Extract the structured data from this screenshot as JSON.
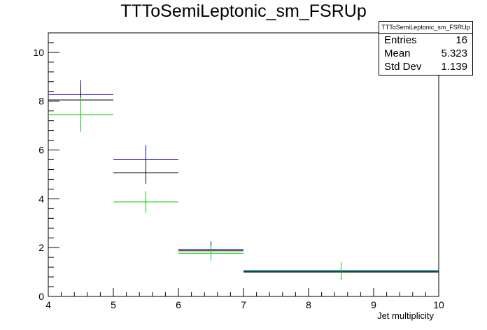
{
  "chart_data": {
    "type": "histogram",
    "title": "TTToSemiLeptonic_sm_FSRUp",
    "xlabel": "Jet multiplicity",
    "ylabel": "",
    "xlim": [
      4,
      10
    ],
    "ylim": [
      0,
      10.8
    ],
    "x_ticks": [
      4,
      5,
      6,
      7,
      8,
      9,
      10
    ],
    "y_ticks": [
      0,
      2,
      4,
      6,
      8,
      10
    ],
    "series": [
      {
        "color": "#0000cc",
        "bins": [
          {
            "xlow": 4,
            "xhigh": 5,
            "y": 8.27,
            "err": 0.6
          },
          {
            "xlow": 5,
            "xhigh": 6,
            "y": 5.6,
            "err": 0.6
          },
          {
            "xlow": 6,
            "xhigh": 7,
            "y": 1.93,
            "err": 0.33
          },
          {
            "xlow": 7,
            "xhigh": 10,
            "y": 1.03,
            "err": 0.33
          }
        ]
      },
      {
        "color": "#000000",
        "bins": [
          {
            "xlow": 4,
            "xhigh": 5,
            "y": 8.05,
            "err": 0.6
          },
          {
            "xlow": 5,
            "xhigh": 6,
            "y": 5.07,
            "err": 0.45
          },
          {
            "xlow": 6,
            "xhigh": 7,
            "y": 1.87,
            "err": 0.3
          },
          {
            "xlow": 7,
            "xhigh": 10,
            "y": 1.0,
            "err": 0.3
          }
        ]
      },
      {
        "color": "#00cc00",
        "bins": [
          {
            "xlow": 4,
            "xhigh": 5,
            "y": 7.45,
            "err": 0.7
          },
          {
            "xlow": 5,
            "xhigh": 6,
            "y": 3.87,
            "err": 0.45
          },
          {
            "xlow": 6,
            "xhigh": 7,
            "y": 1.77,
            "err": 0.3
          },
          {
            "xlow": 7,
            "xhigh": 10,
            "y": 1.07,
            "err": 0.33
          }
        ]
      }
    ],
    "stats": {
      "title": "TTToSemiLeptonic_sm_FSRUp",
      "rows": [
        {
          "label": "Entries",
          "value": "16"
        },
        {
          "label": "Mean",
          "value": "5.323"
        },
        {
          "label": "Std Dev",
          "value": "1.139"
        }
      ]
    }
  }
}
